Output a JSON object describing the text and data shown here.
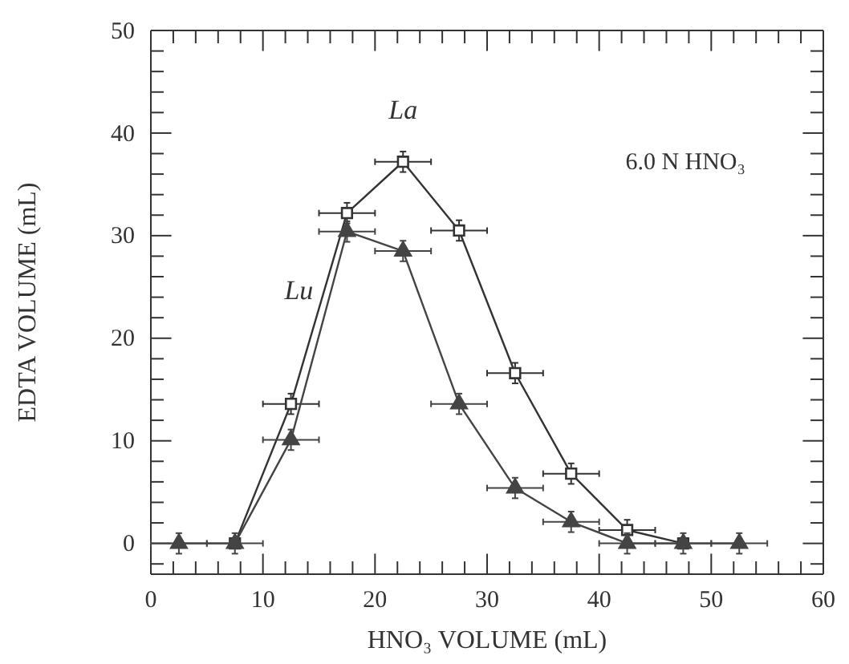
{
  "chart_data": {
    "type": "line",
    "xlabel": "HNO₃ VOLUME (mL)",
    "ylabel": "EDTA VOLUME (mL)",
    "annotations": [
      "6.0 N HNO₃"
    ],
    "xlim": [
      0,
      60
    ],
    "ylim": [
      -3,
      50
    ],
    "xticks": [
      0,
      {
        "value": 2,
        "label": null
      },
      {
        "value": 4,
        "label": null
      },
      {
        "value": 6,
        "label": null
      },
      {
        "value": 8,
        "label": null
      },
      10,
      {
        "value": 12,
        "label": null
      },
      {
        "value": 14,
        "label": null
      },
      {
        "value": 16,
        "label": null
      },
      {
        "value": 18,
        "label": null
      },
      20,
      {
        "value": 22,
        "label": null
      },
      {
        "value": 24,
        "label": null
      },
      {
        "value": 26,
        "label": null
      },
      {
        "value": 28,
        "label": null
      },
      30,
      {
        "value": 32,
        "label": null
      },
      {
        "value": 34,
        "label": null
      },
      {
        "value": 36,
        "label": null
      },
      {
        "value": 38,
        "label": null
      },
      40,
      {
        "value": 42,
        "label": null
      },
      {
        "value": 44,
        "label": null
      },
      {
        "value": 46,
        "label": null
      },
      {
        "value": 48,
        "label": null
      },
      50,
      {
        "value": 52,
        "label": null
      },
      {
        "value": 54,
        "label": null
      },
      {
        "value": 56,
        "label": null
      },
      {
        "value": 58,
        "label": null
      },
      60
    ],
    "yticks": [
      {
        "value": -2,
        "label": null
      },
      0,
      {
        "value": 2,
        "label": null
      },
      {
        "value": 4,
        "label": null
      },
      {
        "value": 6,
        "label": null
      },
      {
        "value": 8,
        "label": null
      },
      10,
      {
        "value": 12,
        "label": null
      },
      {
        "value": 14,
        "label": null
      },
      {
        "value": 16,
        "label": null
      },
      {
        "value": 18,
        "label": null
      },
      20,
      {
        "value": 22,
        "label": null
      },
      {
        "value": 24,
        "label": null
      },
      {
        "value": 26,
        "label": null
      },
      {
        "value": 28,
        "label": null
      },
      30,
      {
        "value": 32,
        "label": null
      },
      {
        "value": 34,
        "label": null
      },
      {
        "value": 36,
        "label": null
      },
      {
        "value": 38,
        "label": null
      },
      40,
      {
        "value": 42,
        "label": null
      },
      {
        "value": 44,
        "label": null
      },
      {
        "value": 46,
        "label": null
      },
      {
        "value": 48,
        "label": null
      },
      50
    ],
    "x": [
      2.5,
      7.5,
      12.5,
      17.5,
      22.5,
      27.5,
      32.5,
      37.5,
      42.5,
      47.5,
      52.5
    ],
    "grid": false,
    "legend": false,
    "line_style": "solid",
    "series": [
      {
        "name": "La",
        "color": "#333333",
        "marker": "square",
        "values": [
          null,
          0,
          13.6,
          32.2,
          37.2,
          30.5,
          16.6,
          6.8,
          1.3,
          0,
          null
        ],
        "errors": [
          null,
          null,
          1,
          1,
          1,
          1,
          1,
          1,
          1,
          null,
          null
        ],
        "xerrors": [
          null,
          null,
          2.5,
          2.5,
          2.5,
          2.5,
          2.5,
          2.5,
          2.5,
          null,
          null
        ]
      },
      {
        "name": "Lu",
        "color": "#444444",
        "marker": "triangle",
        "values": [
          0,
          0,
          10.1,
          30.4,
          28.5,
          13.6,
          5.4,
          2.1,
          0,
          0,
          0
        ],
        "errors": [
          1,
          1,
          1,
          1,
          1,
          1,
          1,
          1,
          1,
          1,
          1
        ],
        "xerrors": [
          2.5,
          2.5,
          2.5,
          2.5,
          2.5,
          2.5,
          2.5,
          2.5,
          2.5,
          2.5,
          2.5
        ]
      }
    ]
  }
}
